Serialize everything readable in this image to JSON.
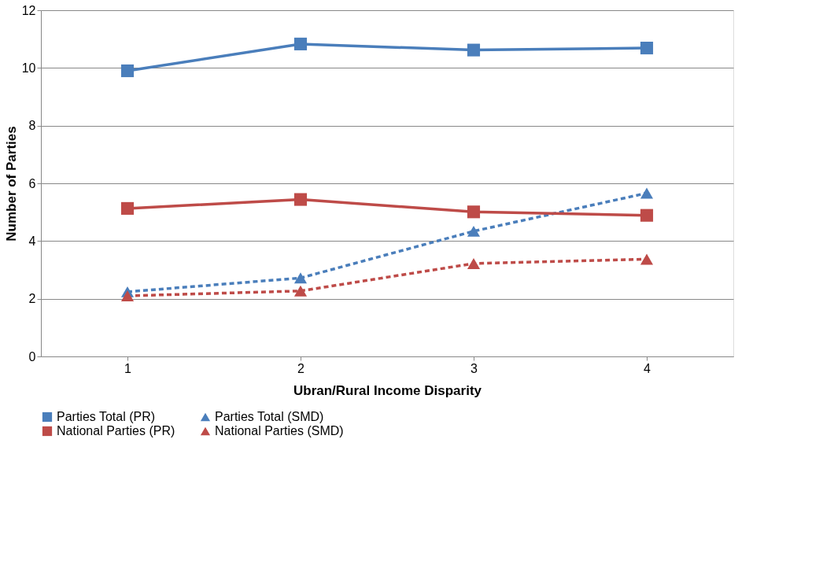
{
  "chart_data": {
    "type": "line",
    "xlabel": "Ubran/Rural Income Disparity",
    "ylabel": "Number of Parties",
    "categories": [
      "1",
      "2",
      "3",
      "4"
    ],
    "series": [
      {
        "name": "Parties Total (PR)",
        "color": "#4a7ebb",
        "values": [
          9.9,
          10.83,
          10.62,
          10.69
        ],
        "marker": "square",
        "line_style": "solid"
      },
      {
        "name": "Parties Total (SMD)",
        "color": "#4a7ebb",
        "values": [
          2.24,
          2.72,
          4.34,
          5.66
        ],
        "marker": "triangle",
        "line_style": "dashed"
      },
      {
        "name": "National Parties (PR)",
        "color": "#be4b48",
        "values": [
          5.13,
          5.44,
          5.01,
          4.89
        ],
        "marker": "square",
        "line_style": "solid"
      },
      {
        "name": "National Parties (SMD)",
        "color": "#be4b48",
        "values": [
          2.1,
          2.27,
          3.22,
          3.37
        ],
        "marker": "triangle",
        "line_style": "dashed"
      }
    ],
    "ylim": [
      0,
      12
    ],
    "yticks": [
      0,
      2,
      4,
      6,
      8,
      10,
      12
    ],
    "grid": "y",
    "legend": "bottom"
  }
}
